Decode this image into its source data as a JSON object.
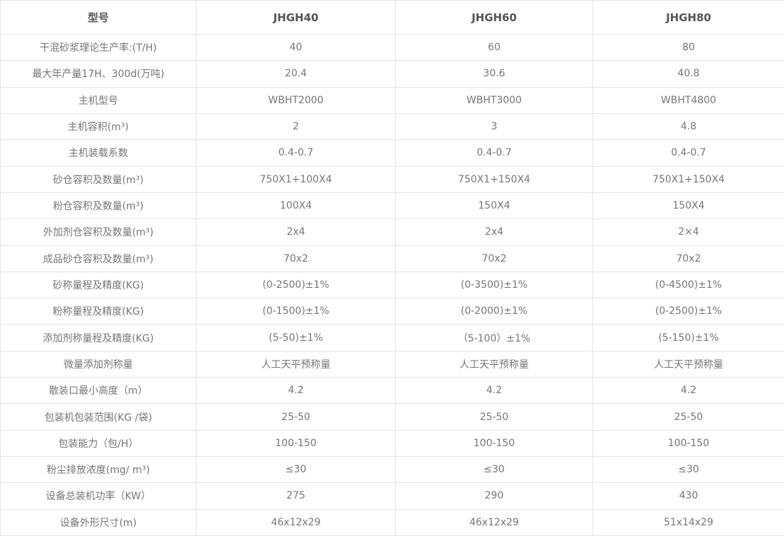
{
  "chart_data": {
    "type": "table",
    "columns": [
      "型号",
      "JHGH40",
      "JHGH60",
      "JHGH80"
    ],
    "rows": [
      [
        "干混砂浆理论生产率:(T/H)",
        "40",
        "60",
        "80"
      ],
      [
        "最大年产量17H、300d(万吨)",
        "20.4",
        "30.6",
        "40.8"
      ],
      [
        "主机型号",
        "WBHT2000",
        "WBHT3000",
        "WBHT4800"
      ],
      [
        "主机容积(m³)",
        "2",
        "3",
        "4.8"
      ],
      [
        "主机装载系数",
        "0.4-0.7",
        "0.4-0.7",
        "0.4-0.7"
      ],
      [
        "砂仓容积及数量(m³)",
        "750X1+100X4",
        "750X1+150X4",
        "750X1+150X4"
      ],
      [
        "粉仓容积及数量(m³)",
        "100X4",
        "150X4",
        "150X4"
      ],
      [
        "外加剂仓容积及数量(m³)",
        "2x4",
        "2x4",
        "2×4"
      ],
      [
        "成品砂仓容积及数量(m³)",
        "70x2",
        "70x2",
        "70x2"
      ],
      [
        "砂称量程及精度(KG)",
        "(0-2500)±1%",
        "(0-3500)±1%",
        "(0-4500)±1%"
      ],
      [
        "粉称量程及精度(KG)",
        "(0-1500)±1%",
        "(0-2000)±1%",
        "(0-2500)±1%"
      ],
      [
        "添加剂称量程及精度(KG)",
        "(5-50)±1%",
        "（5-100）±1%",
        "(5-150)±1%"
      ],
      [
        "微量添加剂称量",
        "人工天平预称量",
        "人工天平预称量",
        "人工天平预称量"
      ],
      [
        "散装口最小高度（m）",
        "4.2",
        "4.2",
        "4.2"
      ],
      [
        "包装机包装范围(KG /袋)",
        "25-50",
        "25-50",
        "25-50"
      ],
      [
        "包装能力（包/H）",
        "100-150",
        "100-150",
        "100-150"
      ],
      [
        "粉尘排放浓度(mg/ m³)",
        "≤30",
        "≤30",
        "≤30"
      ],
      [
        "设备总装机功率（KW）",
        "275",
        "290",
        "430"
      ],
      [
        "设备外形尺寸(m)",
        "46x12x29",
        "46x12x29",
        "51x14x29"
      ]
    ]
  },
  "colors": {
    "border": "#e4e4e4",
    "header_text": "#555555",
    "body_text": "#767676",
    "background": "#ffffff"
  }
}
